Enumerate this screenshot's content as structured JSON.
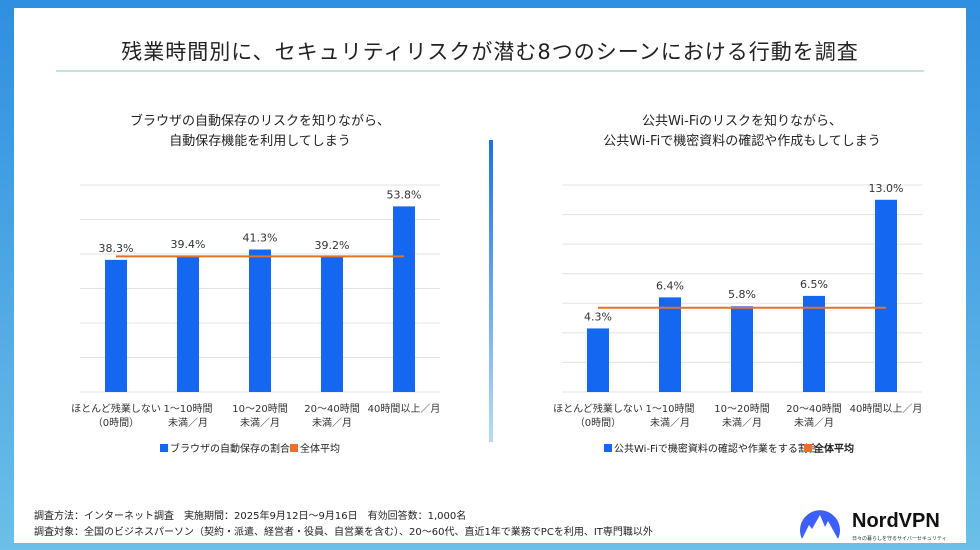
{
  "title": "残業時間別に、セキュリティリスクが潜む8つのシーンにおける行動を調査",
  "chart_data": [
    {
      "type": "bar",
      "title_lines": [
        "ブラウザの自動保存のリスクを知りながら、",
        "自動保存機能を利用してしまう"
      ],
      "categories": [
        [
          "ほとんど残業しない",
          "（0時間）"
        ],
        [
          "1～10時間",
          "未満／月"
        ],
        [
          "10～20時間",
          "未満／月"
        ],
        [
          "20～40時間",
          "未満／月"
        ],
        [
          "40時間以上／月"
        ]
      ],
      "values": [
        38.3,
        39.4,
        41.3,
        39.2,
        53.8
      ],
      "labels": [
        "38.3%",
        "39.4%",
        "41.3%",
        "39.2%",
        "53.8%"
      ],
      "average": 39.3,
      "ylim": [
        0,
        60
      ],
      "grid": true,
      "legend": {
        "series": "ブラウザの自動保存の割合",
        "average": "全体平均"
      },
      "legend_position": "bottom"
    },
    {
      "type": "bar",
      "title_lines": [
        "公共Wi-Fiのリスクを知りながら、",
        "公共Wi-Fiで機密資料の確認や作成もしてしまう"
      ],
      "categories": [
        [
          "ほとんど残業しない",
          "（0時間）"
        ],
        [
          "1～10時間",
          "未満／月"
        ],
        [
          "10～20時間",
          "未満／月"
        ],
        [
          "20～40時間",
          "未満／月"
        ],
        [
          "40時間以上／月"
        ]
      ],
      "values": [
        4.3,
        6.4,
        5.8,
        6.5,
        13.0
      ],
      "labels": [
        "4.3%",
        "6.4%",
        "5.8%",
        "6.5%",
        "13.0%"
      ],
      "average": 5.7,
      "ylim": [
        0,
        14
      ],
      "grid": true,
      "legend": {
        "series": "公共Wi-Fiで機密資料の確認や作業をする割合",
        "average": "全体平均"
      },
      "legend_position": "bottom"
    }
  ],
  "colors": {
    "bar": "#1467f0",
    "average": "#e8702a"
  },
  "footer": {
    "method": "調査方法：インターネット調査　実施期間：2025年9月12日～9月16日　有効回答数：1,000名",
    "target": "調査対象：全国のビジネスパーソン（契約・派遣、経営者・役員、自営業を含む）、20～60代、直近1年で業務でPCを利用、IT専門職以外"
  },
  "logo": {
    "name": "NordVPN",
    "tagline": "日々の暮らしを守るサイバーセキュリティ"
  }
}
